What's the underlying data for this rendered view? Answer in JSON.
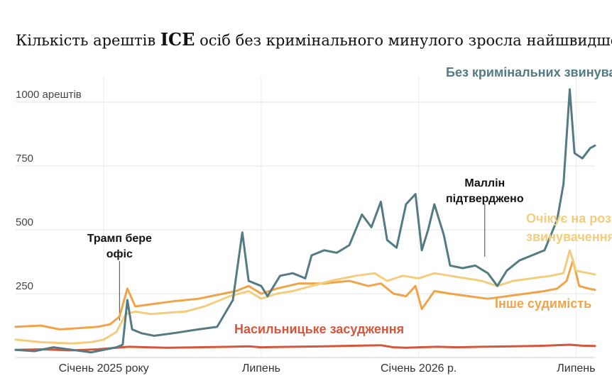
{
  "chart_data": {
    "type": "line",
    "title": "Кількість арештів ICE осіб без кримінального минулого зросла найшвидше",
    "title_parts": [
      "Кількість арештів ",
      "ICE",
      " осіб без кримінального минулого зросла найшвидше"
    ],
    "y_ticks": [
      {
        "value": 1000,
        "label": "1000 арештів"
      },
      {
        "value": 750,
        "label": "750"
      },
      {
        "value": 500,
        "label": "500"
      },
      {
        "value": 250,
        "label": "250"
      }
    ],
    "x_ticks": [
      {
        "value": 2025.0,
        "label": "Січень 2025 року"
      },
      {
        "value": 2025.5,
        "label": "Липень"
      },
      {
        "value": 2026.0,
        "label": "Січень 2026 р."
      },
      {
        "value": 2026.5,
        "label": "Липень"
      }
    ],
    "ylim": [
      0,
      1100
    ],
    "xlim": [
      2024.72,
      2026.56
    ],
    "grid": true,
    "series": [
      {
        "name": "Без кримінальних звинувачень",
        "color": "#547a82",
        "points": [
          [
            2024.72,
            30
          ],
          [
            2024.78,
            25
          ],
          [
            2024.84,
            40
          ],
          [
            2024.9,
            30
          ],
          [
            2024.96,
            20
          ],
          [
            2025.0,
            30
          ],
          [
            2025.04,
            40
          ],
          [
            2025.06,
            50
          ],
          [
            2025.075,
            225
          ],
          [
            2025.09,
            110
          ],
          [
            2025.12,
            95
          ],
          [
            2025.16,
            85
          ],
          [
            2025.22,
            95
          ],
          [
            2025.3,
            110
          ],
          [
            2025.36,
            120
          ],
          [
            2025.41,
            225
          ],
          [
            2025.44,
            490
          ],
          [
            2025.46,
            300
          ],
          [
            2025.5,
            280
          ],
          [
            2025.52,
            240
          ],
          [
            2025.56,
            320
          ],
          [
            2025.6,
            330
          ],
          [
            2025.64,
            310
          ],
          [
            2025.66,
            400
          ],
          [
            2025.7,
            420
          ],
          [
            2025.74,
            410
          ],
          [
            2025.78,
            440
          ],
          [
            2025.82,
            560
          ],
          [
            2025.85,
            510
          ],
          [
            2025.88,
            610
          ],
          [
            2025.9,
            460
          ],
          [
            2025.93,
            430
          ],
          [
            2025.96,
            600
          ],
          [
            2025.99,
            640
          ],
          [
            2026.01,
            420
          ],
          [
            2026.03,
            500
          ],
          [
            2026.05,
            600
          ],
          [
            2026.08,
            480
          ],
          [
            2026.1,
            360
          ],
          [
            2026.14,
            350
          ],
          [
            2026.18,
            360
          ],
          [
            2026.22,
            330
          ],
          [
            2026.25,
            280
          ],
          [
            2026.28,
            340
          ],
          [
            2026.32,
            380
          ],
          [
            2026.36,
            400
          ],
          [
            2026.4,
            420
          ],
          [
            2026.44,
            540
          ],
          [
            2026.46,
            680
          ],
          [
            2026.48,
            1050
          ],
          [
            2026.495,
            800
          ],
          [
            2026.52,
            780
          ],
          [
            2026.545,
            820
          ],
          [
            2026.56,
            830
          ]
        ]
      },
      {
        "name": "Очікує на розгляд звинувачення",
        "color": "#f3cd7e",
        "points": [
          [
            2024.72,
            70
          ],
          [
            2024.8,
            60
          ],
          [
            2024.9,
            55
          ],
          [
            2024.96,
            60
          ],
          [
            2025.0,
            70
          ],
          [
            2025.04,
            100
          ],
          [
            2025.07,
            170
          ],
          [
            2025.1,
            180
          ],
          [
            2025.15,
            170
          ],
          [
            2025.2,
            175
          ],
          [
            2025.26,
            180
          ],
          [
            2025.32,
            200
          ],
          [
            2025.4,
            240
          ],
          [
            2025.46,
            260
          ],
          [
            2025.5,
            230
          ],
          [
            2025.55,
            250
          ],
          [
            2025.6,
            260
          ],
          [
            2025.66,
            280
          ],
          [
            2025.72,
            300
          ],
          [
            2025.8,
            320
          ],
          [
            2025.86,
            330
          ],
          [
            2025.9,
            300
          ],
          [
            2025.95,
            320
          ],
          [
            2026.0,
            310
          ],
          [
            2026.05,
            330
          ],
          [
            2026.1,
            320
          ],
          [
            2026.15,
            310
          ],
          [
            2026.2,
            300
          ],
          [
            2026.25,
            280
          ],
          [
            2026.3,
            300
          ],
          [
            2026.36,
            310
          ],
          [
            2026.42,
            320
          ],
          [
            2026.46,
            330
          ],
          [
            2026.48,
            420
          ],
          [
            2026.5,
            340
          ],
          [
            2026.54,
            330
          ],
          [
            2026.56,
            325
          ]
        ]
      },
      {
        "name": "Інше судимість",
        "color": "#f0a44a",
        "points": [
          [
            2024.72,
            120
          ],
          [
            2024.8,
            125
          ],
          [
            2024.86,
            110
          ],
          [
            2024.92,
            115
          ],
          [
            2024.98,
            120
          ],
          [
            2025.02,
            130
          ],
          [
            2025.05,
            160
          ],
          [
            2025.075,
            270
          ],
          [
            2025.1,
            200
          ],
          [
            2025.16,
            210
          ],
          [
            2025.22,
            220
          ],
          [
            2025.3,
            230
          ],
          [
            2025.38,
            250
          ],
          [
            2025.42,
            260
          ],
          [
            2025.46,
            280
          ],
          [
            2025.5,
            250
          ],
          [
            2025.55,
            270
          ],
          [
            2025.62,
            290
          ],
          [
            2025.7,
            290
          ],
          [
            2025.78,
            300
          ],
          [
            2025.84,
            280
          ],
          [
            2025.88,
            290
          ],
          [
            2025.92,
            250
          ],
          [
            2025.96,
            240
          ],
          [
            2025.99,
            280
          ],
          [
            2026.01,
            190
          ],
          [
            2026.05,
            260
          ],
          [
            2026.1,
            250
          ],
          [
            2026.16,
            240
          ],
          [
            2026.22,
            230
          ],
          [
            2026.28,
            240
          ],
          [
            2026.34,
            250
          ],
          [
            2026.4,
            260
          ],
          [
            2026.44,
            270
          ],
          [
            2026.47,
            300
          ],
          [
            2026.49,
            380
          ],
          [
            2026.51,
            280
          ],
          [
            2026.54,
            270
          ],
          [
            2026.56,
            265
          ]
        ]
      },
      {
        "name": "Насильницьке засудження",
        "color": "#d4563c",
        "points": [
          [
            2024.72,
            30
          ],
          [
            2024.8,
            32
          ],
          [
            2024.9,
            28
          ],
          [
            2024.98,
            32
          ],
          [
            2025.04,
            38
          ],
          [
            2025.08,
            42
          ],
          [
            2025.14,
            40
          ],
          [
            2025.2,
            38
          ],
          [
            2025.3,
            40
          ],
          [
            2025.4,
            42
          ],
          [
            2025.46,
            44
          ],
          [
            2025.5,
            40
          ],
          [
            2025.6,
            42
          ],
          [
            2025.7,
            44
          ],
          [
            2025.8,
            46
          ],
          [
            2025.88,
            48
          ],
          [
            2025.92,
            40
          ],
          [
            2025.96,
            38
          ],
          [
            2026.0,
            40
          ],
          [
            2026.06,
            42
          ],
          [
            2026.12,
            40
          ],
          [
            2026.2,
            42
          ],
          [
            2026.3,
            44
          ],
          [
            2026.4,
            46
          ],
          [
            2026.48,
            50
          ],
          [
            2026.52,
            46
          ],
          [
            2026.56,
            45
          ]
        ]
      }
    ],
    "labels": {
      "no_criminal": "Без кримінальних звинувачень",
      "pending_1": "Очікує на розгляд",
      "pending_2": "звинувачення",
      "other": "Інше судимість",
      "violent": "Насильницьке засудження"
    },
    "annotations": [
      {
        "lines": [
          "Трамп бере",
          "офіс"
        ],
        "x": 2025.05
      },
      {
        "lines": [
          "Маллін",
          "підтверджено"
        ],
        "x": 2026.21
      }
    ]
  }
}
